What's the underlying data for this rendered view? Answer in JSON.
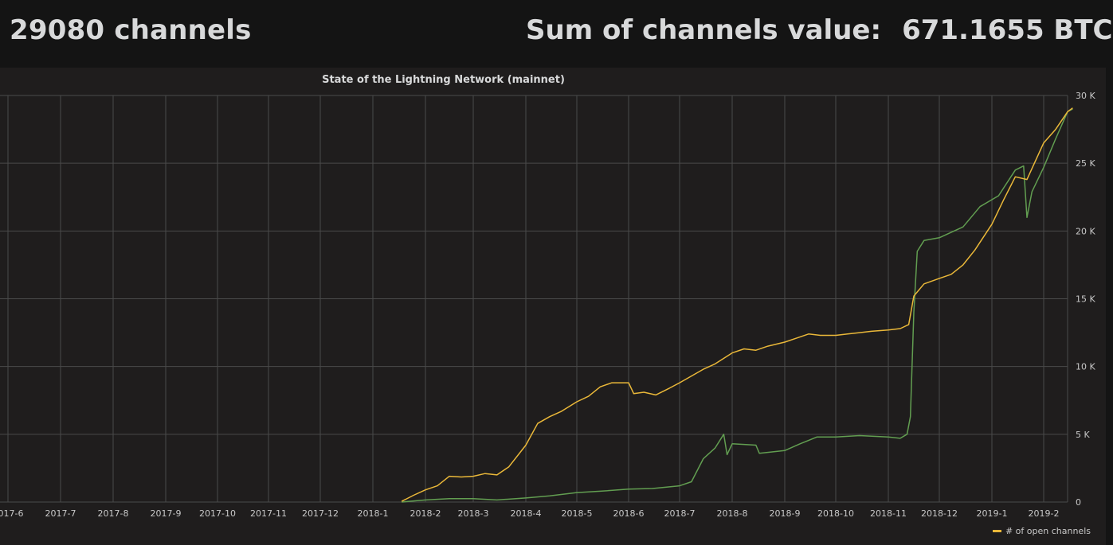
{
  "header": {
    "channels_text": "29080 channels",
    "sum_label": "Sum of channels value:",
    "sum_value": "671.1655 BTC"
  },
  "chart_data": {
    "type": "line",
    "title": "State of the Lightning Network (mainnet)",
    "x_tick_labels": [
      "2017-6",
      "2017-7",
      "2017-8",
      "2017-9",
      "2017-10",
      "2017-11",
      "2017-12",
      "2018-1",
      "2018-2",
      "2018-3",
      "2018-4",
      "2018-5",
      "2018-6",
      "2018-7",
      "2018-8",
      "2018-9",
      "2018-10",
      "2018-11",
      "2018-12",
      "2019-1",
      "2019-2"
    ],
    "y_tick_labels": [
      "0",
      "5 K",
      "10 K",
      "15 K",
      "20 K",
      "25 K",
      "30 K"
    ],
    "ylim": [
      0,
      30000
    ],
    "grid": true,
    "legend_position": "bottom-right",
    "colors": {
      "open_channels": "#eab839",
      "second_series": "#629e51",
      "grid": "#4a4a4a"
    },
    "series": [
      {
        "name": "# of open channels",
        "color": "#eab839",
        "points": [
          [
            "2018-01-18",
            50
          ],
          [
            "2018-01-25",
            500
          ],
          [
            "2018-02-01",
            900
          ],
          [
            "2018-02-08",
            1200
          ],
          [
            "2018-02-15",
            1900
          ],
          [
            "2018-02-22",
            1850
          ],
          [
            "2018-03-01",
            1900
          ],
          [
            "2018-03-08",
            2100
          ],
          [
            "2018-03-15",
            2000
          ],
          [
            "2018-03-22",
            2600
          ],
          [
            "2018-04-01",
            4200
          ],
          [
            "2018-04-08",
            5800
          ],
          [
            "2018-04-15",
            6300
          ],
          [
            "2018-04-22",
            6700
          ],
          [
            "2018-05-01",
            7400
          ],
          [
            "2018-05-08",
            7800
          ],
          [
            "2018-05-15",
            8500
          ],
          [
            "2018-05-22",
            8800
          ],
          [
            "2018-06-01",
            8800
          ],
          [
            "2018-06-04",
            8000
          ],
          [
            "2018-06-10",
            8100
          ],
          [
            "2018-06-17",
            7900
          ],
          [
            "2018-06-25",
            8400
          ],
          [
            "2018-07-01",
            8800
          ],
          [
            "2018-07-08",
            9300
          ],
          [
            "2018-07-15",
            9800
          ],
          [
            "2018-07-22",
            10200
          ],
          [
            "2018-08-01",
            11000
          ],
          [
            "2018-08-08",
            11300
          ],
          [
            "2018-08-15",
            11200
          ],
          [
            "2018-08-22",
            11500
          ],
          [
            "2018-09-01",
            11800
          ],
          [
            "2018-09-08",
            12100
          ],
          [
            "2018-09-15",
            12400
          ],
          [
            "2018-09-22",
            12300
          ],
          [
            "2018-10-01",
            12300
          ],
          [
            "2018-10-08",
            12400
          ],
          [
            "2018-10-15",
            12500
          ],
          [
            "2018-10-22",
            12600
          ],
          [
            "2018-11-01",
            12700
          ],
          [
            "2018-11-08",
            12800
          ],
          [
            "2018-11-13",
            13100
          ],
          [
            "2018-11-16",
            15200
          ],
          [
            "2018-11-22",
            16100
          ],
          [
            "2018-12-01",
            16500
          ],
          [
            "2018-12-08",
            16800
          ],
          [
            "2018-12-15",
            17500
          ],
          [
            "2018-12-22",
            18600
          ],
          [
            "2019-01-01",
            20500
          ],
          [
            "2019-01-08",
            22300
          ],
          [
            "2019-01-15",
            24000
          ],
          [
            "2019-01-22",
            23800
          ],
          [
            "2019-02-01",
            26500
          ],
          [
            "2019-02-08",
            27500
          ],
          [
            "2019-02-15",
            28800
          ],
          [
            "2019-02-18",
            29080
          ]
        ]
      },
      {
        "name": "",
        "color": "#629e51",
        "points": [
          [
            "2018-01-18",
            0
          ],
          [
            "2018-02-01",
            150
          ],
          [
            "2018-02-15",
            250
          ],
          [
            "2018-03-01",
            250
          ],
          [
            "2018-03-15",
            150
          ],
          [
            "2018-04-01",
            300
          ],
          [
            "2018-04-15",
            450
          ],
          [
            "2018-05-01",
            700
          ],
          [
            "2018-05-15",
            800
          ],
          [
            "2018-06-01",
            950
          ],
          [
            "2018-06-15",
            1000
          ],
          [
            "2018-07-01",
            1200
          ],
          [
            "2018-07-08",
            1500
          ],
          [
            "2018-07-15",
            3200
          ],
          [
            "2018-07-22",
            4000
          ],
          [
            "2018-07-27",
            5000
          ],
          [
            "2018-07-29",
            3500
          ],
          [
            "2018-08-01",
            4300
          ],
          [
            "2018-08-15",
            4200
          ],
          [
            "2018-08-17",
            3600
          ],
          [
            "2018-09-01",
            3800
          ],
          [
            "2018-09-10",
            4300
          ],
          [
            "2018-09-20",
            4800
          ],
          [
            "2018-10-01",
            4800
          ],
          [
            "2018-10-15",
            4900
          ],
          [
            "2018-11-01",
            4800
          ],
          [
            "2018-11-08",
            4700
          ],
          [
            "2018-11-12",
            5000
          ],
          [
            "2018-11-14",
            6300
          ],
          [
            "2018-11-16",
            14000
          ],
          [
            "2018-11-18",
            18500
          ],
          [
            "2018-11-22",
            19300
          ],
          [
            "2018-12-01",
            19500
          ],
          [
            "2018-12-15",
            20300
          ],
          [
            "2018-12-25",
            21800
          ],
          [
            "2019-01-05",
            22600
          ],
          [
            "2019-01-15",
            24500
          ],
          [
            "2019-01-20",
            24800
          ],
          [
            "2019-01-22",
            21000
          ],
          [
            "2019-01-25",
            22900
          ],
          [
            "2019-02-01",
            24700
          ],
          [
            "2019-02-08",
            26800
          ],
          [
            "2019-02-15",
            28800
          ],
          [
            "2019-02-18",
            29000
          ]
        ]
      }
    ]
  }
}
